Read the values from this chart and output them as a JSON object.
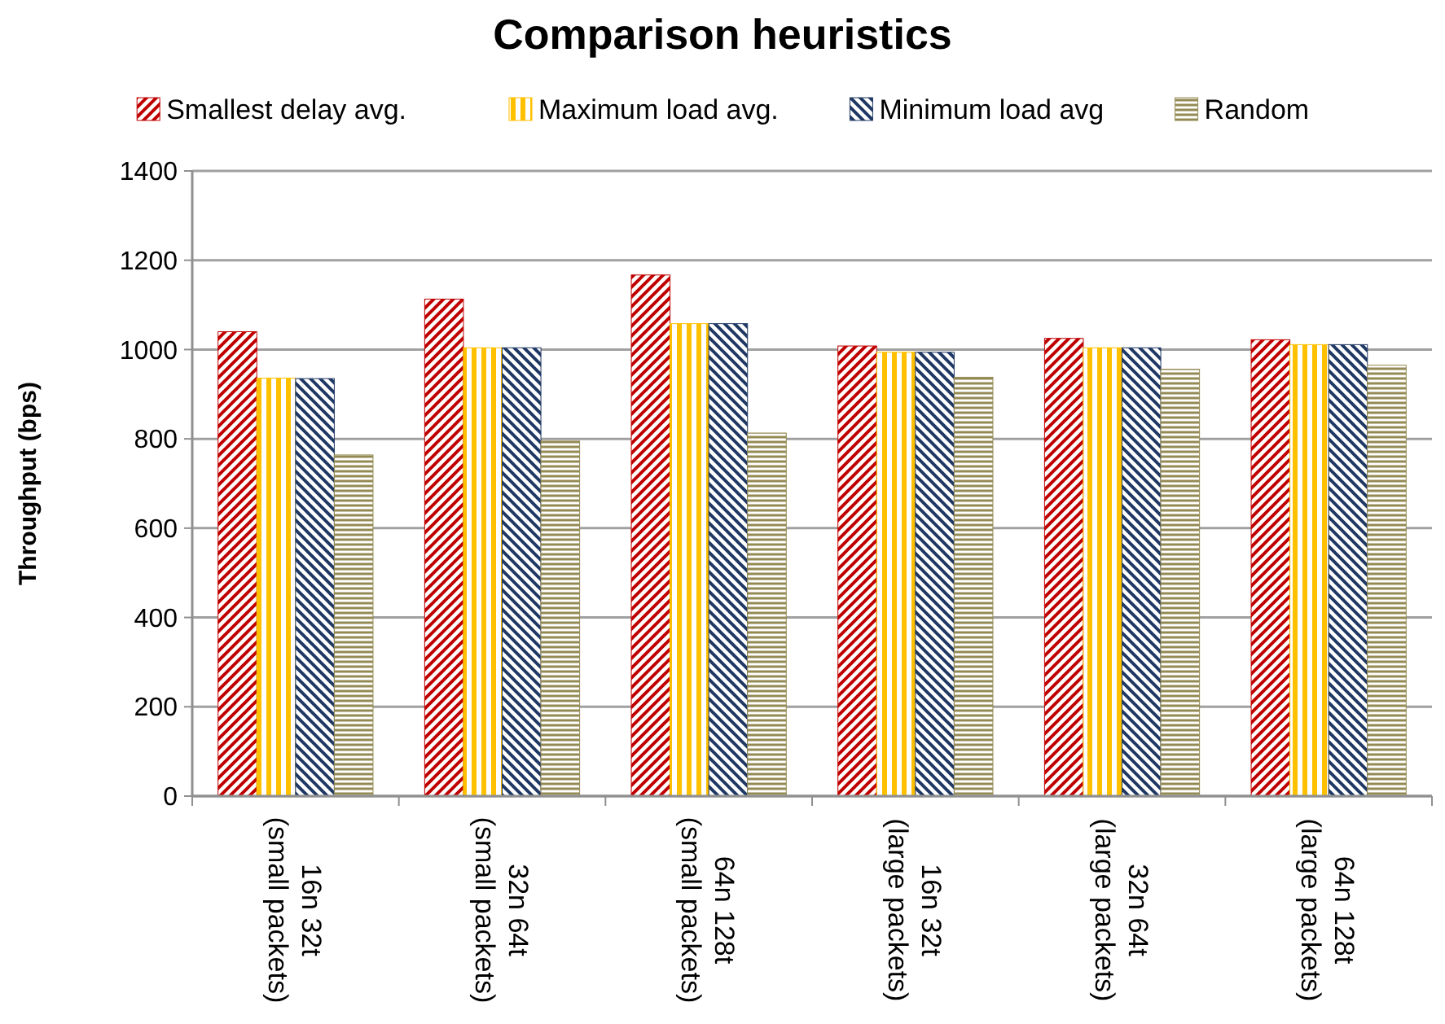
{
  "chart_data": {
    "type": "bar",
    "title": "Comparison heuristics",
    "ylabel": "Throughput (bps)",
    "categories": [
      "16n 32t (small packets)",
      "32n 64t (small packets)",
      "64n 128t (small packets)",
      "16n 32t (large packets)",
      "32n 64t (large packets)",
      "64n 128t (large packets)"
    ],
    "series": [
      {
        "name": "Smallest delay avg.",
        "color": "#c00000",
        "values": [
          1040,
          1113,
          1167,
          1008,
          1025,
          1022
        ]
      },
      {
        "name": "Maximum load avg.",
        "color": "#ffc000",
        "values": [
          936,
          1004,
          1058,
          994,
          1004,
          1011
        ]
      },
      {
        "name": "Minimum load avg",
        "color": "#1f3864",
        "values": [
          935,
          1004,
          1058,
          994,
          1004,
          1011
        ]
      },
      {
        "name": "Random",
        "color": "#948a54",
        "values": [
          764,
          795,
          813,
          938,
          956,
          965
        ]
      }
    ],
    "ylim": [
      0,
      1400
    ],
    "yticks": [
      0,
      200,
      400,
      600,
      800,
      1000,
      1200,
      1400
    ],
    "grid": "y",
    "legend": "top"
  }
}
